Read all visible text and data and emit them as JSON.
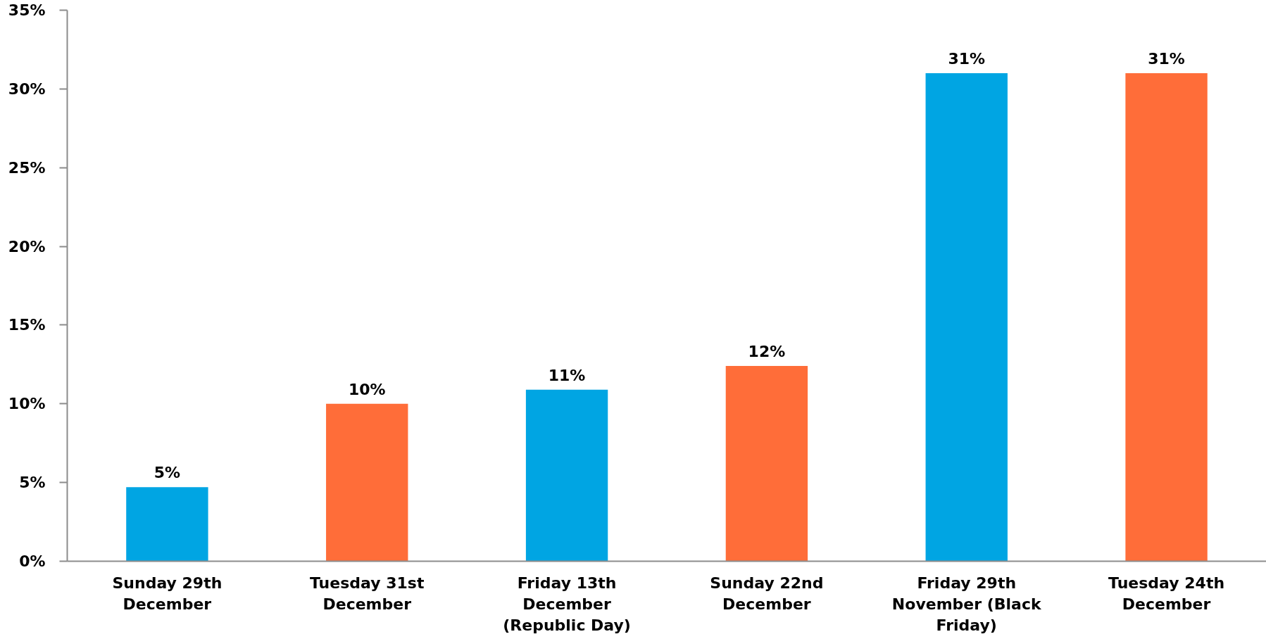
{
  "chart_data": {
    "type": "bar",
    "categories": [
      "Sunday 29th December",
      "Tuesday 31st December",
      "Friday 13th December (Republic Day)",
      "Sunday 22nd December",
      "Friday 29th November (Black Friday)",
      "Tuesday 24th December"
    ],
    "values": [
      4.7,
      10.0,
      10.9,
      12.4,
      31,
      31
    ],
    "colors": [
      "#00a5e3",
      "#ff6d39",
      "#00a5e3",
      "#ff6d39",
      "#00a5e3",
      "#ff6d39"
    ],
    "value_labels": [
      "5%",
      "10%",
      "11%",
      "12%",
      "31%",
      "31%"
    ],
    "ylim": [
      0,
      35
    ],
    "yticks": [
      {
        "value": 0,
        "label": "0%"
      },
      {
        "value": 5,
        "label": "5%"
      },
      {
        "value": 10,
        "label": "10%"
      },
      {
        "value": 15,
        "label": "15%"
      },
      {
        "value": 20,
        "label": "20%"
      },
      {
        "value": 25,
        "label": "25%"
      },
      {
        "value": 30,
        "label": "30%"
      },
      {
        "value": 35,
        "label": "35%"
      }
    ]
  }
}
